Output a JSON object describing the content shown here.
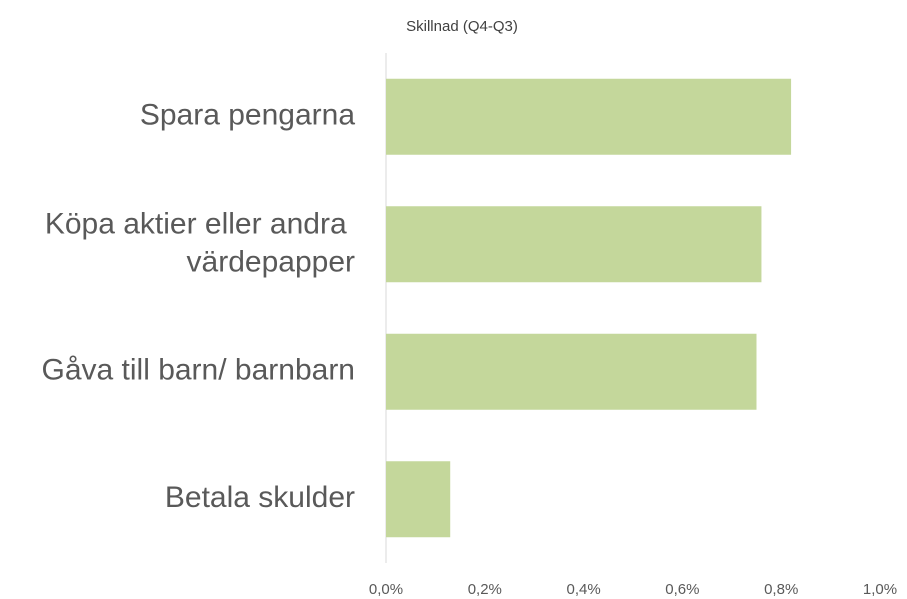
{
  "chart_data": {
    "type": "bar",
    "orientation": "horizontal",
    "title": "Skillnad (Q4-Q3)",
    "categories": [
      "Spara pengarna",
      "Köpa aktier eller andra värdepapper",
      "Gåva till barn/ barnbarn",
      "Betala skulder"
    ],
    "values": [
      0.82,
      0.76,
      0.75,
      0.13
    ],
    "color": "#c4d79b",
    "xlim": [
      0,
      1.0
    ],
    "xticks": [
      {
        "value": 0,
        "label": "0,0%"
      },
      {
        "value": 0.2,
        "label": "0,2%"
      },
      {
        "value": 0.4,
        "label": "0,4%"
      },
      {
        "value": 0.6,
        "label": "0,6%"
      },
      {
        "value": 0.8,
        "label": "0,8%"
      },
      {
        "value": 1.0,
        "label": "1,0%"
      }
    ]
  }
}
